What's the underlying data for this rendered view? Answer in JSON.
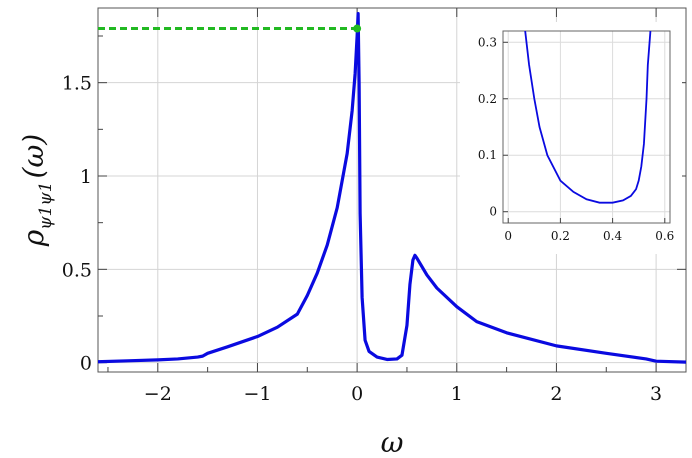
{
  "chart_data": [
    {
      "type": "line",
      "title": "",
      "xlabel": "ω",
      "ylabel": {
        "base": "ρ",
        "sub": "ψ1ψ1",
        "arg": "(ω)"
      },
      "xlim": [
        -2.6,
        3.3
      ],
      "ylim": [
        -0.05,
        1.9
      ],
      "xticks": [
        -2,
        -1,
        0,
        1,
        2,
        3
      ],
      "xtick_labels": [
        "−2",
        "−1",
        "0",
        "1",
        "2",
        "3"
      ],
      "yticks": [
        0,
        0.5,
        1,
        1.5
      ],
      "ytick_labels": [
        "0",
        "0.5",
        "1",
        "1.5"
      ],
      "grid": true,
      "series_color": "#0a0ae0",
      "reference_color": "#22b922",
      "series": [
        {
          "x": [
            -2.6,
            -2.3,
            -2.0,
            -1.8,
            -1.6,
            -1.55,
            -1.5,
            -1.3,
            -1.0,
            -0.8,
            -0.6,
            -0.5,
            -0.4,
            -0.3,
            -0.2,
            -0.1,
            -0.05,
            -0.02,
            0.0,
            0.01,
            0.02,
            0.03,
            0.05,
            0.08,
            0.12,
            0.2,
            0.3,
            0.4,
            0.45,
            0.5,
            0.53,
            0.56,
            0.58,
            0.6,
            0.7,
            0.8,
            1.0,
            1.2,
            1.5,
            2.0,
            2.5,
            2.9,
            3.0,
            3.3
          ],
          "y": [
            0.005,
            0.01,
            0.015,
            0.02,
            0.03,
            0.035,
            0.05,
            0.085,
            0.14,
            0.19,
            0.26,
            0.36,
            0.48,
            0.63,
            0.83,
            1.12,
            1.35,
            1.55,
            1.75,
            1.87,
            1.5,
            0.8,
            0.35,
            0.12,
            0.06,
            0.03,
            0.017,
            0.02,
            0.04,
            0.2,
            0.42,
            0.55,
            0.575,
            0.56,
            0.47,
            0.4,
            0.3,
            0.22,
            0.16,
            0.09,
            0.05,
            0.02,
            0.008,
            0.003
          ]
        }
      ],
      "reference_point": {
        "x": 0.0,
        "y": 1.79
      }
    },
    {
      "type": "line",
      "title": "",
      "xlim": [
        -0.02,
        0.62
      ],
      "ylim": [
        -0.02,
        0.32
      ],
      "xticks": [
        0,
        0.2,
        0.4,
        0.6
      ],
      "xtick_labels": [
        "0",
        "0.2",
        "0.4",
        "0.6"
      ],
      "yticks": [
        0,
        0.1,
        0.2,
        0.3
      ],
      "ytick_labels": [
        "0",
        "0.1",
        "0.2",
        "0.3"
      ],
      "grid": true,
      "series": [
        {
          "x": [
            0.065,
            0.08,
            0.1,
            0.12,
            0.15,
            0.2,
            0.25,
            0.3,
            0.35,
            0.4,
            0.44,
            0.47,
            0.49,
            0.5,
            0.51,
            0.52,
            0.53,
            0.535,
            0.545
          ],
          "y": [
            0.32,
            0.26,
            0.2,
            0.15,
            0.1,
            0.055,
            0.035,
            0.022,
            0.016,
            0.016,
            0.02,
            0.028,
            0.04,
            0.055,
            0.08,
            0.12,
            0.2,
            0.26,
            0.32
          ]
        }
      ]
    }
  ]
}
